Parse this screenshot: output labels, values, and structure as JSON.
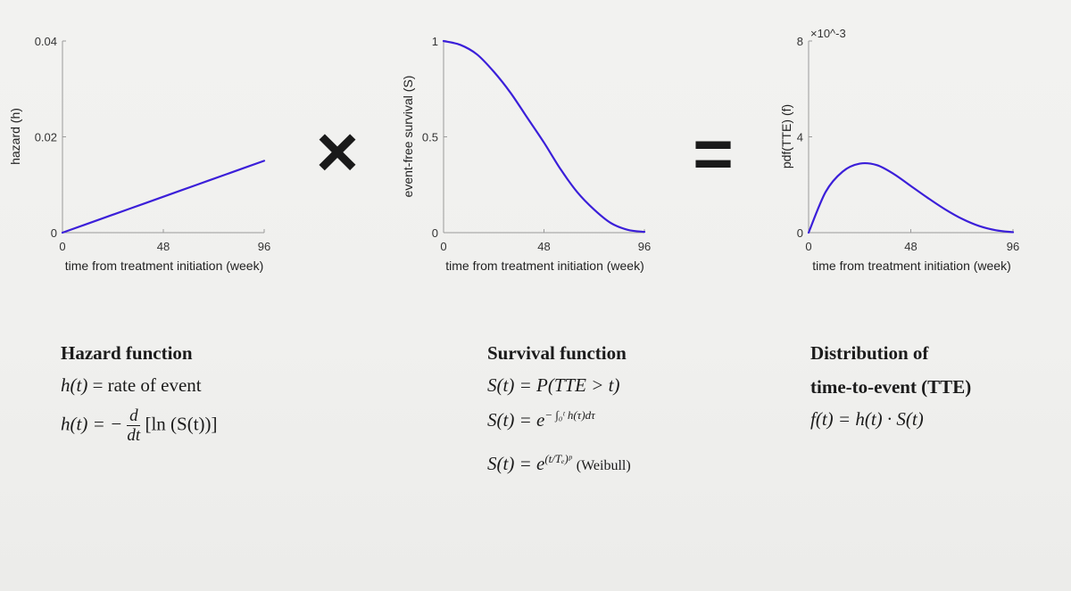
{
  "chart_data": [
    {
      "type": "line",
      "title": "",
      "xlabel": "time from treatment initiation (week)",
      "ylabel": "hazard (h)",
      "xlim": [
        0,
        96
      ],
      "ylim": [
        0,
        0.04
      ],
      "xticks": [
        "0",
        "48",
        "96"
      ],
      "yticks": [
        "0",
        "0.02",
        "0.04"
      ],
      "series": [
        {
          "x": [
            0,
            16,
            32,
            48,
            64,
            80,
            96
          ],
          "y": [
            0,
            0.0025,
            0.005,
            0.0075,
            0.01,
            0.0125,
            0.015
          ]
        }
      ]
    },
    {
      "type": "line",
      "title": "",
      "xlabel": "time from treatment initiation (week)",
      "ylabel": "event-free survival (S)",
      "xlim": [
        0,
        96
      ],
      "ylim": [
        0,
        1
      ],
      "xticks": [
        "0",
        "48",
        "96"
      ],
      "yticks": [
        "0",
        "0.5",
        "1"
      ],
      "series": [
        {
          "x": [
            0,
            8,
            16,
            24,
            32,
            40,
            48,
            56,
            64,
            72,
            80,
            88,
            96
          ],
          "y": [
            1.0,
            0.98,
            0.93,
            0.84,
            0.73,
            0.6,
            0.47,
            0.33,
            0.21,
            0.12,
            0.05,
            0.015,
            0.004
          ]
        }
      ]
    },
    {
      "type": "line",
      "title": "",
      "xlabel": "time from treatment initiation (week)",
      "ylabel": "pdf(TTE) (f)",
      "ylabel_multiplier": "×10^-3",
      "xlim": [
        0,
        96
      ],
      "ylim": [
        0,
        8
      ],
      "xticks": [
        "0",
        "48",
        "96"
      ],
      "yticks": [
        "0",
        "4",
        "8"
      ],
      "series": [
        {
          "x": [
            0,
            8,
            16,
            24,
            32,
            40,
            48,
            56,
            64,
            72,
            80,
            88,
            96
          ],
          "y": [
            0,
            1.7,
            2.55,
            2.88,
            2.82,
            2.45,
            1.95,
            1.45,
            0.98,
            0.58,
            0.28,
            0.1,
            0.02
          ]
        }
      ]
    }
  ],
  "operators": {
    "multiply": "×",
    "equals": "="
  },
  "colors": {
    "curve": "#3b1fd9",
    "axis": "#9a9a9a",
    "text": "#1b1b1b"
  },
  "formulas": {
    "hazard": {
      "heading": "Hazard function",
      "line1_lhs": "h(t)",
      "line1_rhs": " = rate of event",
      "line2_lhs": "h(t) = −",
      "line2_num": "d",
      "line2_den": "dt",
      "line2_rhs": "[ln (S(t))]"
    },
    "survival": {
      "heading": "Survival function",
      "line1": "S(t) = P(TTE > t)",
      "line2_base": "S(t) = e",
      "line2_exp": "− ∫₀ᵗ h(τ)dτ",
      "line3_base": "S(t) = e",
      "line3_exp": "(t/Tₑ)ᵖ",
      "line3_note": "(Weibull)"
    },
    "distribution": {
      "heading_line1": "Distribution of",
      "heading_line2": "time-to-event (TTE)",
      "line1": "f(t) = h(t) · S(t)"
    }
  }
}
